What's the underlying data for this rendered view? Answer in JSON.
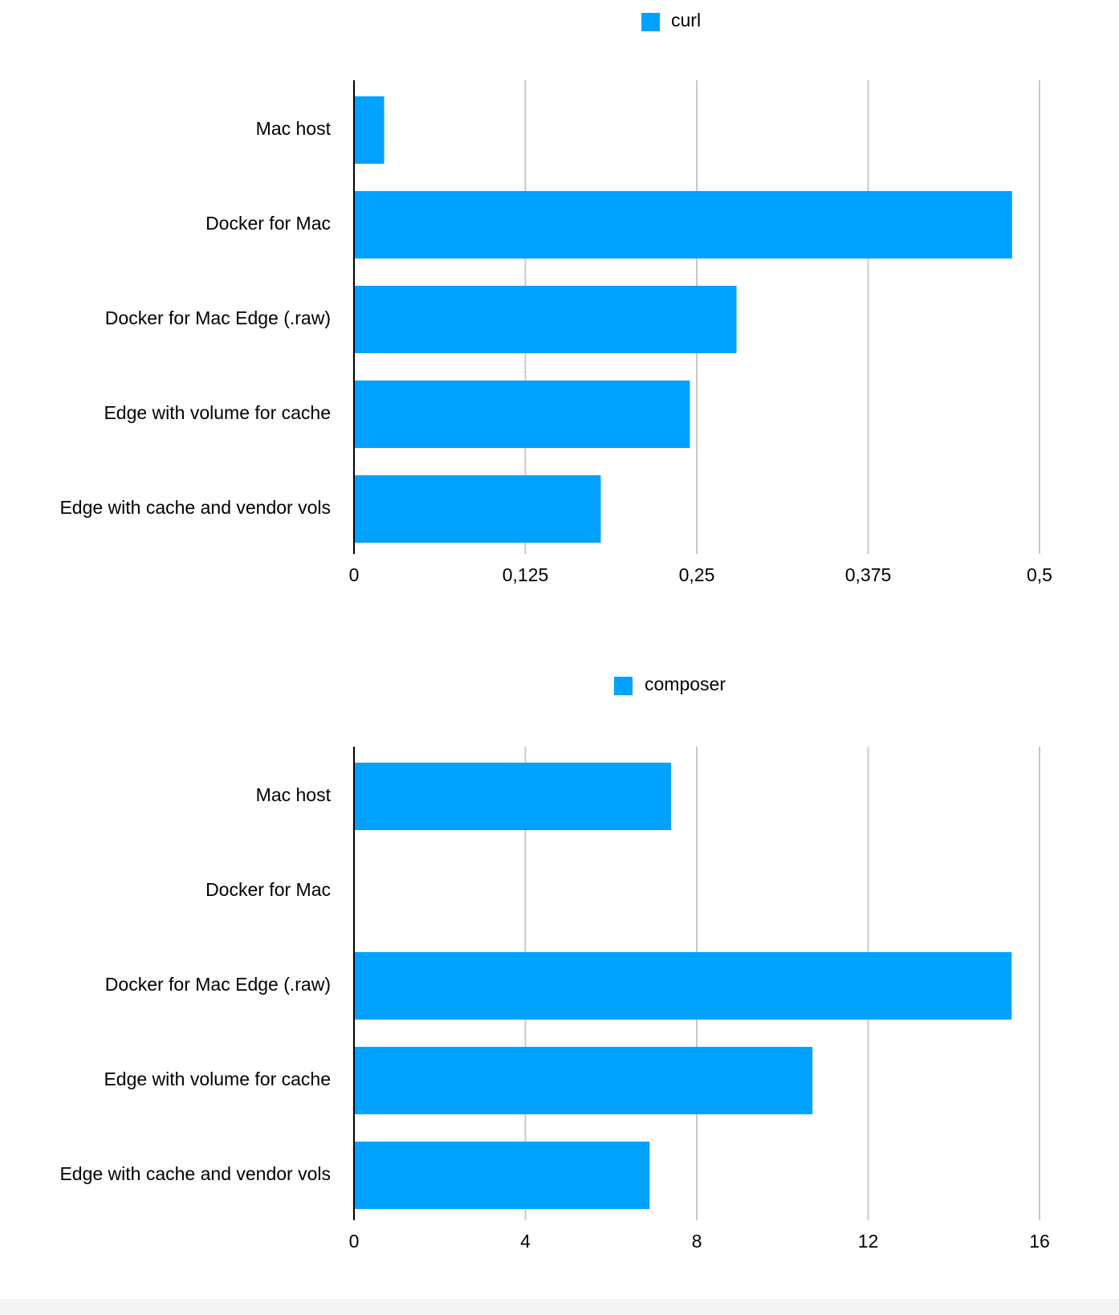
{
  "chart_data": [
    {
      "type": "bar",
      "orientation": "horizontal",
      "categories": [
        "Mac host",
        "Docker for Mac",
        "Docker for Mac Edge (.raw)",
        "Edge with volume for cache",
        "Edge with cache and vendor vols"
      ],
      "series": [
        {
          "name": "curl",
          "values": [
            0.022,
            0.48,
            0.279,
            0.245,
            0.18
          ]
        }
      ],
      "xlim": [
        0,
        0.5
      ],
      "xticks": [
        "0",
        "0,125",
        "0,25",
        "0,375",
        "0,5"
      ],
      "xtick_values": [
        0,
        0.125,
        0.25,
        0.375,
        0.5
      ],
      "grid": "vertical",
      "legend": "top-center",
      "color": "#00a2ff",
      "title": "",
      "xlabel": "",
      "ylabel": ""
    },
    {
      "type": "bar",
      "orientation": "horizontal",
      "categories": [
        "Mac host",
        "Docker for Mac",
        "Docker for Mac Edge (.raw)",
        "Edge with volume for cache",
        "Edge with cache and vendor vols"
      ],
      "series": [
        {
          "name": "composer",
          "values": [
            7.4,
            null,
            15.35,
            10.7,
            6.9
          ]
        }
      ],
      "xlim": [
        0,
        16
      ],
      "xticks": [
        "0",
        "4",
        "8",
        "12",
        "16"
      ],
      "xtick_values": [
        0,
        4,
        8,
        12,
        16
      ],
      "grid": "vertical",
      "legend": "top-center",
      "color": "#00a2ff",
      "title": "",
      "xlabel": "",
      "ylabel": ""
    }
  ]
}
